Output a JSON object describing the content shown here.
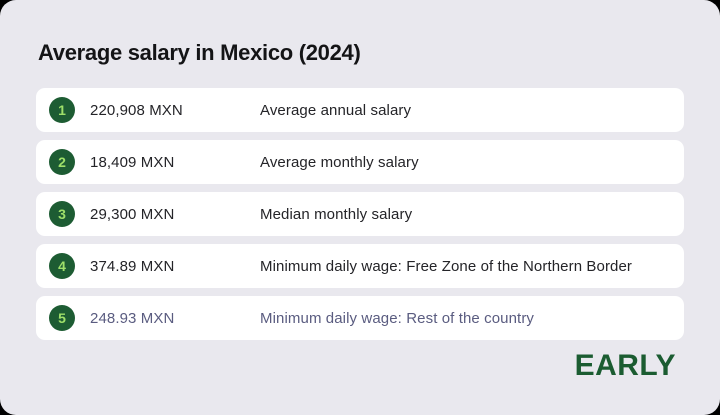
{
  "page": {
    "title": "Average salary in Mexico (2024)"
  },
  "brand": {
    "logo_text": "EARLY",
    "logo_color": "#1b5c31"
  },
  "colors": {
    "outer_background": "#000000",
    "card_background": "#e9e8ee",
    "row_background": "#ffffff",
    "badge_background": "#1d5c33",
    "badge_number": "#9fe06a",
    "text_primary": "#242428",
    "text_highlighted": "#5a5c80"
  },
  "rows": [
    {
      "rank": "1",
      "amount": "220,908 MXN",
      "label": "Average annual salary",
      "highlighted": false
    },
    {
      "rank": "2",
      "amount": "18,409 MXN",
      "label": "Average monthly salary",
      "highlighted": false
    },
    {
      "rank": "3",
      "amount": "29,300 MXN",
      "label": "Median monthly salary",
      "highlighted": false
    },
    {
      "rank": "4",
      "amount": "374.89 MXN",
      "label": "Minimum daily wage: Free Zone of the Northern Border",
      "highlighted": false
    },
    {
      "rank": "5",
      "amount": "248.93 MXN",
      "label": "Minimum daily wage: Rest of the country",
      "highlighted": true
    }
  ],
  "chart_data": {
    "type": "table",
    "title": "Average salary in Mexico (2024)",
    "columns": [
      "rank",
      "amount_mxn",
      "description"
    ],
    "categories": [
      "Average annual salary",
      "Average monthly salary",
      "Median monthly salary",
      "Minimum daily wage: Free Zone of the Northern Border",
      "Minimum daily wage: Rest of the country"
    ],
    "values": [
      220908,
      18409,
      29300,
      374.89,
      248.93
    ],
    "unit": "MXN",
    "legend_position": "none",
    "grid": false
  }
}
